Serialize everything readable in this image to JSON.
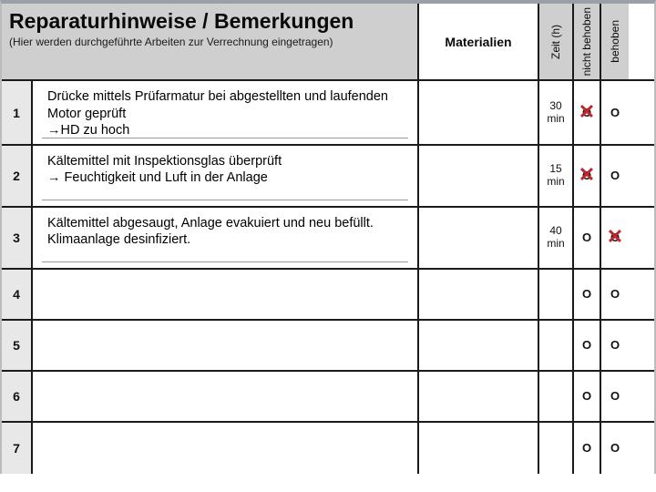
{
  "header": {
    "title": "Reparaturhinweise / Bemerkungen",
    "subtitle": "(Hier werden durchgeführte Arbeiten zur Verrechnung eingetragen)",
    "col_materials": "Materialien",
    "col_time": "Zeit (h)",
    "col_not_fixed": "nicht behoben",
    "col_fixed": "behoben",
    "header_bg": "#cfcfcf",
    "title_fontsize": 23,
    "sub_fontsize": 12
  },
  "symbols": {
    "circle": "O",
    "cross": "✕",
    "arrow": "→"
  },
  "colors": {
    "border": "#1a1a1a",
    "numcol_bg": "#e8e8e8",
    "cross_red": "#c0272d",
    "row_bg": "#ffffff"
  },
  "rows": [
    {
      "n": "1",
      "desc": "Drücke mittels Prüfarmatur bei abgestellten und laufenden Motor geprüft\n→HD zu hoch",
      "time_value": "30",
      "time_unit": "min",
      "not_fixed_crossed": true,
      "fixed_crossed": false
    },
    {
      "n": "2",
      "desc": "Kältemittel mit Inspektionsglas überprüft\n→ Feuchtigkeit und Luft in der Anlage",
      "time_value": "15",
      "time_unit": "min",
      "not_fixed_crossed": true,
      "fixed_crossed": false
    },
    {
      "n": "3",
      "desc": "Kältemittel abgesaugt, Anlage evakuiert und neu befüllt.\nKlimaanlage desinfiziert.",
      "time_value": "40",
      "time_unit": "min",
      "not_fixed_crossed": false,
      "fixed_crossed": true
    },
    {
      "n": "4",
      "desc": "",
      "time_value": "",
      "time_unit": "",
      "not_fixed_crossed": false,
      "fixed_crossed": false
    },
    {
      "n": "5",
      "desc": "",
      "time_value": "",
      "time_unit": "",
      "not_fixed_crossed": false,
      "fixed_crossed": false
    },
    {
      "n": "6",
      "desc": "",
      "time_value": "",
      "time_unit": "",
      "not_fixed_crossed": false,
      "fixed_crossed": false
    },
    {
      "n": "7",
      "desc": "",
      "time_value": "",
      "time_unit": "",
      "not_fixed_crossed": false,
      "fixed_crossed": false,
      "cutoff": true
    }
  ]
}
